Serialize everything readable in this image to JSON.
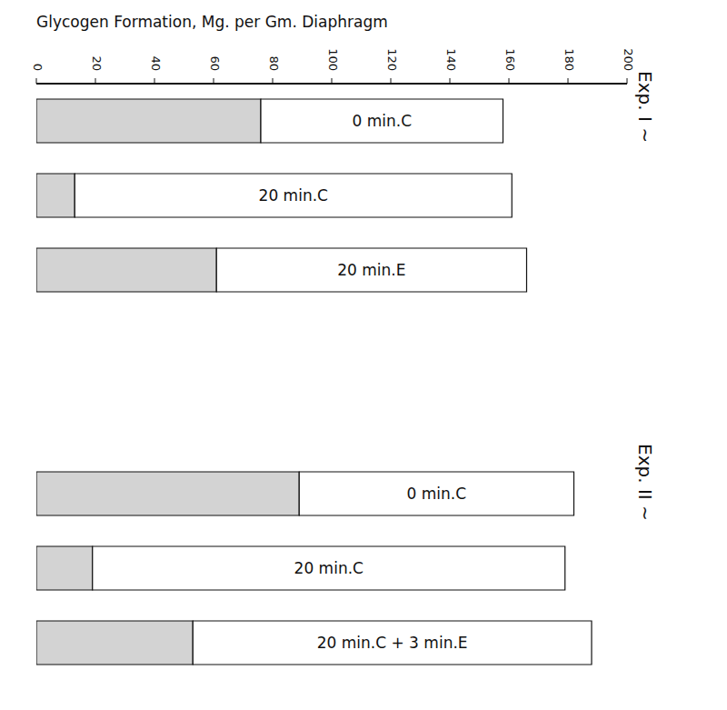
{
  "chart_data": {
    "type": "bar",
    "orientation": "horizontal",
    "stacked": true,
    "title": "Glycogen Formation, Mg. per Gm. Diaphragm",
    "categories": [
      "0 min.C",
      "20 min.C",
      "20 min.E",
      null,
      null,
      "0 min.C",
      "20 min.C",
      "20 min.C + 3 min.E"
    ],
    "series": [
      {
        "color": "#d3d3d3",
        "values": [
          76,
          13,
          61,
          null,
          null,
          89,
          19,
          53
        ]
      },
      {
        "color": "#ffffff",
        "values": [
          82,
          148,
          105,
          null,
          null,
          93,
          160,
          135
        ]
      }
    ],
    "xlim": [
      0,
      200
    ],
    "xticks": [
      0,
      20,
      40,
      60,
      80,
      100,
      120,
      140,
      160,
      180,
      200
    ],
    "grid": false,
    "tick_labels": "x",
    "annotations": [
      "Exp. I ~",
      "Exp. II ~"
    ]
  }
}
